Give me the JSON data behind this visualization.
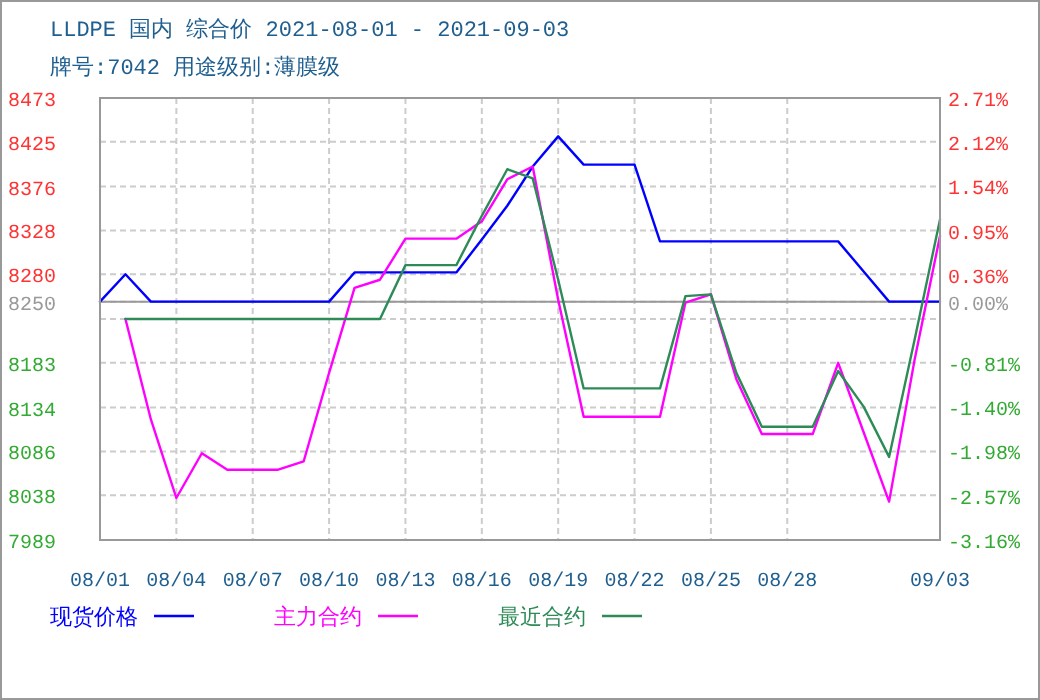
{
  "chart_data": {
    "type": "line",
    "title": "LLDPE 国内 综合价 2021-08-01 - 2021-09-03",
    "subtitle": "牌号:7042 用途级别:薄膜级",
    "x": [
      "2021-08-01",
      "2021-08-02",
      "2021-08-03",
      "2021-08-04",
      "2021-08-05",
      "2021-08-06",
      "2021-08-07",
      "2021-08-08",
      "2021-08-09",
      "2021-08-10",
      "2021-08-11",
      "2021-08-12",
      "2021-08-13",
      "2021-08-14",
      "2021-08-15",
      "2021-08-16",
      "2021-08-17",
      "2021-08-18",
      "2021-08-19",
      "2021-08-20",
      "2021-08-21",
      "2021-08-22",
      "2021-08-23",
      "2021-08-24",
      "2021-08-25",
      "2021-08-26",
      "2021-08-27",
      "2021-08-28",
      "2021-08-29",
      "2021-08-30",
      "2021-08-31",
      "2021-09-01",
      "2021-09-02",
      "2021-09-03"
    ],
    "series": [
      {
        "name": "现货价格",
        "color": "#0000ff",
        "values": [
          8250,
          8280,
          8250,
          8250,
          8250,
          8250,
          8250,
          8250,
          8250,
          8250,
          8282,
          8282,
          8282,
          8282,
          8282,
          8318,
          8355,
          8398,
          8431,
          8400,
          8400,
          8400,
          8316,
          8316,
          8316,
          8316,
          8316,
          8316,
          8316,
          8316,
          8283,
          8250,
          8250,
          8250
        ]
      },
      {
        "name": "主力合约",
        "color": "#ff00ff",
        "values": [
          null,
          8231,
          8121,
          8035,
          8084,
          8066,
          8066,
          8066,
          8075,
          8172,
          8265,
          8274,
          8319,
          8319,
          8319,
          8338,
          8384,
          8398,
          8252,
          8124,
          8124,
          8124,
          8124,
          8249,
          8258,
          8165,
          8105,
          8105,
          8105,
          8183,
          8107,
          8031,
          8186,
          8322
        ]
      },
      {
        "name": "最近合约",
        "color": "#2e8b57",
        "values": [
          null,
          8231,
          8231,
          8231,
          8231,
          8231,
          8231,
          8231,
          8231,
          8231,
          8231,
          8231,
          8290,
          8290,
          8290,
          8344,
          8395,
          8385,
          8274,
          8155,
          8155,
          8155,
          8155,
          8256,
          8258,
          8172,
          8113,
          8113,
          8113,
          8174,
          8135,
          8080,
          8208,
          8340
        ]
      }
    ],
    "xlim": [
      "2021-08-01",
      "2021-09-03"
    ],
    "xticks": [
      {
        "value": "2021-08-01",
        "label": "08/01"
      },
      {
        "value": "2021-08-04",
        "label": "08/04"
      },
      {
        "value": "2021-08-07",
        "label": "08/07"
      },
      {
        "value": "2021-08-10",
        "label": "08/10"
      },
      {
        "value": "2021-08-13",
        "label": "08/13"
      },
      {
        "value": "2021-08-16",
        "label": "08/16"
      },
      {
        "value": "2021-08-19",
        "label": "08/19"
      },
      {
        "value": "2021-08-22",
        "label": "08/22"
      },
      {
        "value": "2021-08-25",
        "label": "08/25"
      },
      {
        "value": "2021-08-28",
        "label": "08/28"
      },
      {
        "value": "2021-09-03",
        "label": "09/03"
      }
    ],
    "ylim": [
      7989,
      8473
    ],
    "yticks": [
      7989,
      8038,
      8086,
      8134,
      8183,
      {
        "value": 8231,
        "label": null
      },
      8250,
      8280,
      8328,
      8376,
      8425,
      8473
    ],
    "y2lim": [
      -3.16,
      2.71
    ],
    "y2ticks": [
      {
        "value": -3.16,
        "label": "-3.16%"
      },
      {
        "value": -2.57,
        "label": "-2.57%"
      },
      {
        "value": -1.98,
        "label": "-1.98%"
      },
      {
        "value": -1.4,
        "label": "-1.40%"
      },
      {
        "value": -0.81,
        "label": "-0.81%"
      },
      {
        "value": 0,
        "label": "0.00%"
      },
      {
        "value": 0.36,
        "label": "0.36%"
      },
      {
        "value": 0.95,
        "label": "0.95%"
      },
      {
        "value": 1.54,
        "label": "1.54%"
      },
      {
        "value": 2.12,
        "label": "2.12%"
      },
      {
        "value": 2.71,
        "label": "2.71%"
      }
    ],
    "ref_lines": [
      {
        "axis": "y",
        "value": 8250,
        "color": "#999999"
      }
    ],
    "grid": true,
    "legend": "bottom",
    "marker": "none",
    "line_style": "solid"
  }
}
